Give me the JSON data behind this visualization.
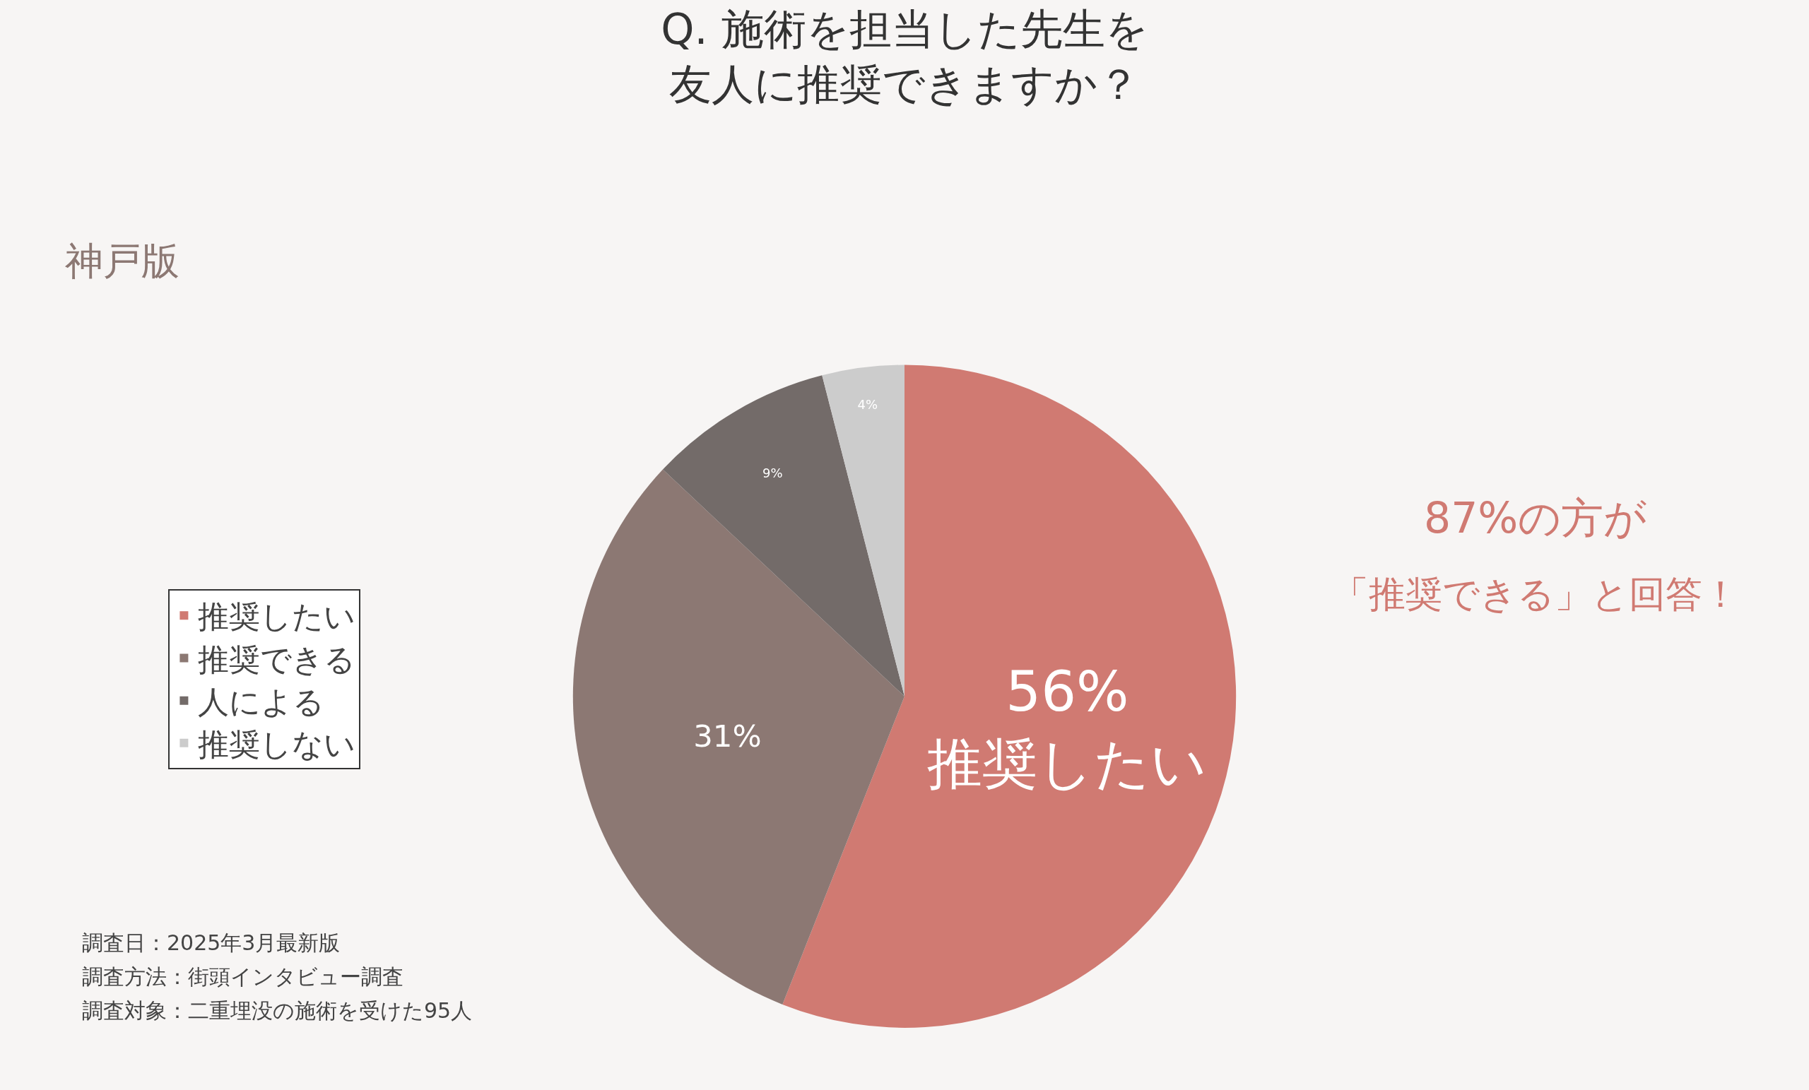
{
  "chart_data": {
    "type": "pie",
    "title": "Q. 施術を担当した先生を友人に推奨できますか？",
    "categories": [
      "推奨したい",
      "推奨できる",
      "人による",
      "推奨しない"
    ],
    "values": [
      56,
      31,
      9,
      4
    ],
    "colors": [
      "#d07a72",
      "#8c7873",
      "#736b69",
      "#cccccc"
    ],
    "value_labels": [
      "56%\n推奨したい",
      "31%",
      "9%",
      "4%"
    ],
    "legend": "left",
    "annotations": [
      "神戸版",
      "87%の方が",
      "「推奨できる」と回答！",
      "調査日：2025年3月最新版",
      "調査方法：街頭インタビュー調査",
      "調査対象：二重埋没の施術を受けた95人"
    ]
  }
}
